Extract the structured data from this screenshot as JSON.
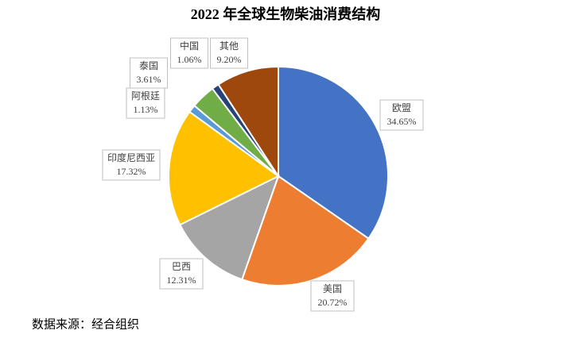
{
  "chart_data": {
    "type": "pie",
    "title": "2022 年全球生物柴油消费结构",
    "categories": [
      "欧盟",
      "美国",
      "巴西",
      "印度尼西亚",
      "阿根廷",
      "泰国",
      "中国",
      "其他"
    ],
    "values": [
      34.65,
      20.72,
      12.31,
      17.32,
      1.13,
      3.61,
      1.06,
      9.2
    ],
    "value_labels": [
      "34.65%",
      "20.72%",
      "12.31%",
      "17.32%",
      "1.13%",
      "3.61%",
      "1.06%",
      "9.20%"
    ],
    "colors": [
      "#4472c4",
      "#ed7d31",
      "#a5a5a5",
      "#ffc000",
      "#5b9bd5",
      "#70ad47",
      "#264478",
      "#9e480e"
    ],
    "source": "数据来源：经合组织"
  }
}
